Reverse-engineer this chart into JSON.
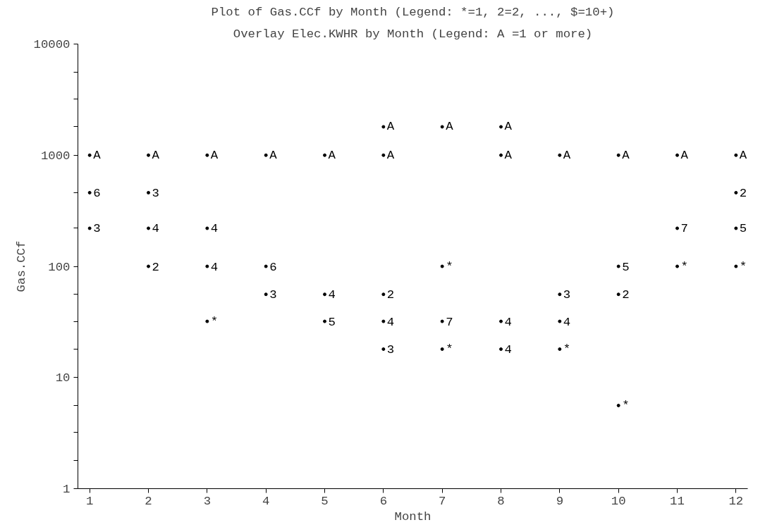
{
  "chart_data": {
    "type": "scatter",
    "title": "Plot of Gas.CCf by Month (Legend: *=1, 2=2, ..., $=10+)",
    "subtitle": "Overlay Elec.KWHR by Month (Legend: A =1 or more)",
    "xlabel": "Month",
    "ylabel": "Gas.CCf",
    "log": true,
    "grid": false,
    "marker": "circle",
    "xlim": [
      0.8,
      12.2
    ],
    "xticks": [
      1,
      2,
      3,
      4,
      5,
      6,
      7,
      8,
      9,
      10,
      11,
      12
    ],
    "ylim": [
      1,
      10000
    ],
    "yticks": [
      1,
      {
        "value": 1.8,
        "label": null
      },
      {
        "value": 3.2,
        "label": null
      },
      {
        "value": 5.6,
        "label": null
      },
      10,
      {
        "value": 18,
        "label": null
      },
      {
        "value": 32,
        "label": null
      },
      {
        "value": 56,
        "label": null
      },
      100,
      {
        "value": 220,
        "label": null
      },
      {
        "value": 460,
        "label": null
      },
      1000,
      {
        "value": 1800,
        "label": null
      },
      {
        "value": 3200,
        "label": null
      },
      {
        "value": 5600,
        "label": null
      },
      10000
    ],
    "series": [
      {
        "name": "*",
        "color": "#000000",
        "x": [
          7,
          11,
          12,
          3,
          7,
          9,
          10
        ],
        "values": [
          100,
          100,
          100,
          32,
          18,
          18,
          5.6
        ]
      },
      {
        "name": "2",
        "color": "#000000",
        "x": [
          12,
          2,
          6,
          10
        ],
        "values": [
          460,
          100,
          56,
          56
        ]
      },
      {
        "name": "3",
        "color": "#000000",
        "x": [
          2,
          1,
          4,
          9,
          6
        ],
        "values": [
          460,
          220,
          56,
          56,
          18
        ]
      },
      {
        "name": "4",
        "color": "#000000",
        "x": [
          2,
          3,
          3,
          5,
          6,
          8,
          9,
          8
        ],
        "values": [
          220,
          220,
          100,
          56,
          32,
          32,
          32,
          18
        ]
      },
      {
        "name": "5",
        "color": "#000000",
        "x": [
          12,
          10,
          5
        ],
        "values": [
          220,
          100,
          32
        ]
      },
      {
        "name": "6",
        "color": "#000000",
        "x": [
          1,
          4
        ],
        "values": [
          460,
          100
        ]
      },
      {
        "name": "7",
        "color": "#000000",
        "x": [
          11,
          7
        ],
        "values": [
          220,
          32
        ]
      },
      {
        "name": "A",
        "color": "#000000",
        "x": [
          6,
          7,
          8,
          1,
          2,
          3,
          4,
          5,
          6,
          8,
          9,
          10,
          11,
          12
        ],
        "values": [
          1800,
          1800,
          1800,
          1000,
          1000,
          1000,
          1000,
          1000,
          1000,
          1000,
          1000,
          1000,
          1000,
          1000
        ]
      }
    ]
  }
}
